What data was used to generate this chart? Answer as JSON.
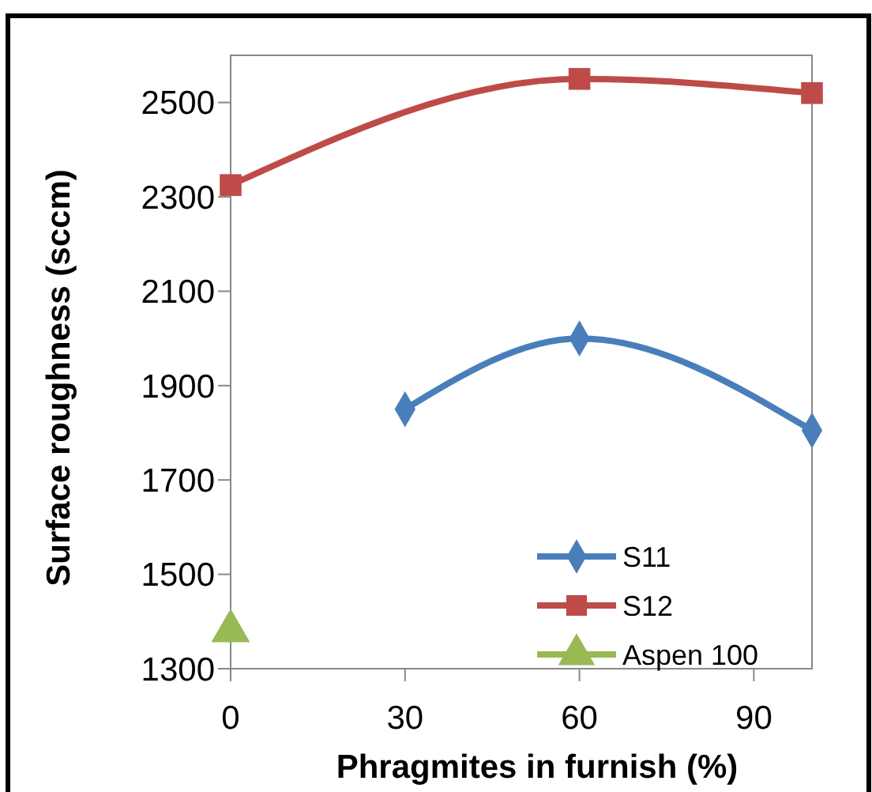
{
  "chart_data": {
    "type": "line",
    "xlabel": "Phragmites in furnish (%)",
    "ylabel": "Surface roughness (sccm)",
    "xlim": [
      0,
      100
    ],
    "xticks": [
      0,
      30,
      60,
      90
    ],
    "ylim": [
      1300,
      2600
    ],
    "yticks": [
      1300,
      1500,
      1700,
      1900,
      2100,
      2300,
      2500
    ],
    "grid": false,
    "legend": "bottom right",
    "line_style": "solid",
    "series": [
      {
        "name": "S11",
        "color": "#4a7ebb",
        "marker": "diamond",
        "x": [
          30,
          60,
          100
        ],
        "values": [
          1850,
          2000,
          1805
        ]
      },
      {
        "name": "S12",
        "color": "#be4b48",
        "marker": "square",
        "x": [
          0,
          60,
          100
        ],
        "values": [
          2325,
          2550,
          2520
        ]
      },
      {
        "name": "Aspen 100",
        "color": "#98b954",
        "marker": "triangle",
        "x": [
          0
        ],
        "values": [
          1380
        ]
      }
    ]
  }
}
